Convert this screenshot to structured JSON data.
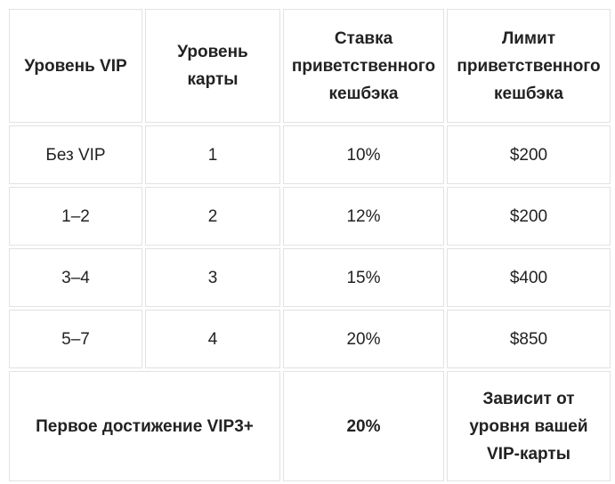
{
  "table": {
    "header": [
      "Уровень VIP",
      "Уровень карты",
      "Ставка приветственного кешбэка",
      "Лимит приветственного кешбэка"
    ],
    "rows": [
      [
        "Без VIP",
        "1",
        "10%",
        "$200"
      ],
      [
        "1–2",
        "2",
        "12%",
        "$200"
      ],
      [
        "3–4",
        "3",
        "15%",
        "$400"
      ],
      [
        "5–7",
        "4",
        "20%",
        "$850"
      ]
    ],
    "footer": [
      "Первое достижение VIP3+",
      "20%",
      "Зависит от уровня вашей VIP-карты"
    ]
  }
}
